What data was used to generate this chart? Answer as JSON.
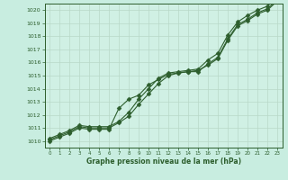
{
  "x": [
    0,
    1,
    2,
    3,
    4,
    5,
    6,
    7,
    8,
    9,
    10,
    11,
    12,
    13,
    14,
    15,
    16,
    17,
    18,
    19,
    20,
    21,
    22,
    23
  ],
  "line1": [
    1010.2,
    1010.5,
    1010.8,
    1011.2,
    1011.1,
    1011.1,
    1011.1,
    1011.5,
    1012.2,
    1013.2,
    1014.0,
    1014.8,
    1015.2,
    1015.3,
    1015.4,
    1015.5,
    1016.2,
    1016.7,
    1018.1,
    1019.1,
    1019.6,
    1020.0,
    1020.3,
    1021.0
  ],
  "line2": [
    1010.1,
    1010.4,
    1010.7,
    1011.1,
    1011.0,
    1011.0,
    1011.0,
    1011.4,
    1011.9,
    1012.8,
    1013.6,
    1014.4,
    1015.0,
    1015.2,
    1015.3,
    1015.3,
    1015.9,
    1016.4,
    1017.8,
    1018.9,
    1019.3,
    1019.8,
    1020.1,
    1020.8
  ],
  "line3": [
    1010.0,
    1010.3,
    1010.6,
    1011.0,
    1010.9,
    1010.9,
    1010.9,
    1012.5,
    1013.2,
    1013.5,
    1014.3,
    1014.7,
    1015.1,
    1015.2,
    1015.3,
    1015.4,
    1015.8,
    1016.3,
    1017.7,
    1018.8,
    1019.2,
    1019.7,
    1020.0,
    1020.7
  ],
  "ylim": [
    1009.5,
    1020.5
  ],
  "xlim": [
    -0.5,
    23.5
  ],
  "yticks": [
    1010,
    1011,
    1012,
    1013,
    1014,
    1015,
    1016,
    1017,
    1018,
    1019,
    1020
  ],
  "xticks": [
    0,
    1,
    2,
    3,
    4,
    5,
    6,
    7,
    8,
    9,
    10,
    11,
    12,
    13,
    14,
    15,
    16,
    17,
    18,
    19,
    20,
    21,
    22,
    23
  ],
  "xlabel": "Graphe pression niveau de la mer (hPa)",
  "line_color": "#2d5e2d",
  "marker_color": "#2d5e2d",
  "bg_color": "#c8ece0",
  "plot_bg_color": "#cceedd",
  "grid_color": "#aaccbb",
  "axis_color": "#2d5e2d",
  "text_color": "#2d5e2d",
  "marker": "D",
  "marker_size": 2.5,
  "line_width": 0.8
}
